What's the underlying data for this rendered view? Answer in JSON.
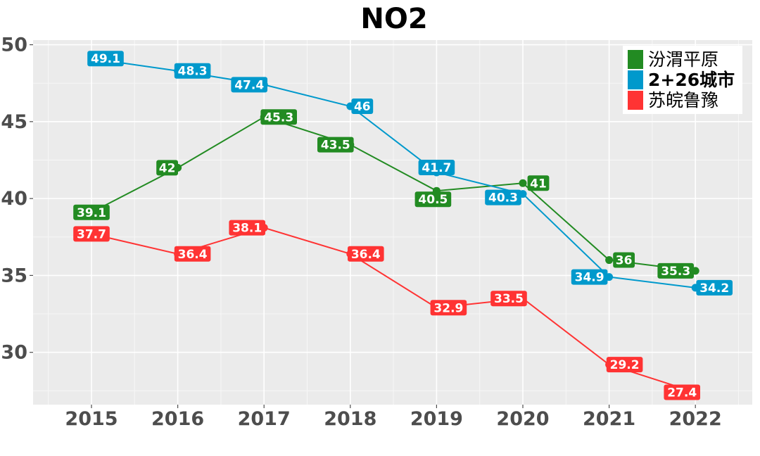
{
  "chart_data": {
    "type": "line",
    "title": "NO2",
    "xlabel": "",
    "ylabel": "",
    "x": [
      "2015",
      "2016",
      "2017",
      "2018",
      "2019",
      "2020",
      "2021",
      "2022"
    ],
    "ylim": [
      26.6,
      50.3
    ],
    "yticks": [
      "30",
      "35",
      "40",
      "45",
      "50"
    ],
    "grid": true,
    "legend_position": "top-right",
    "series": [
      {
        "name": "汾渭平原",
        "color": "#228B22",
        "values": [
          39.1,
          42,
          45.3,
          43.5,
          40.5,
          41,
          36,
          35.3
        ],
        "labels": [
          "39.1",
          "42",
          "45.3",
          "43.5",
          "40.5",
          "41",
          "36",
          "35.3"
        ]
      },
      {
        "name": "2+26城市",
        "color": "#0099CC",
        "values": [
          49.1,
          48.3,
          47.4,
          46,
          41.7,
          40.3,
          34.9,
          34.2
        ],
        "labels": [
          "49.1",
          "48.3",
          "47.4",
          "46",
          "41.7",
          "40.3",
          "34.9",
          "34.2"
        ]
      },
      {
        "name": "苏皖鲁豫",
        "color": "#FF3333",
        "values": [
          37.7,
          36.4,
          38.1,
          36.4,
          32.9,
          33.5,
          29.2,
          27.4
        ],
        "labels": [
          "37.7",
          "36.4",
          "38.1",
          "36.4",
          "32.9",
          "33.5",
          "29.2",
          "27.4"
        ]
      }
    ]
  }
}
